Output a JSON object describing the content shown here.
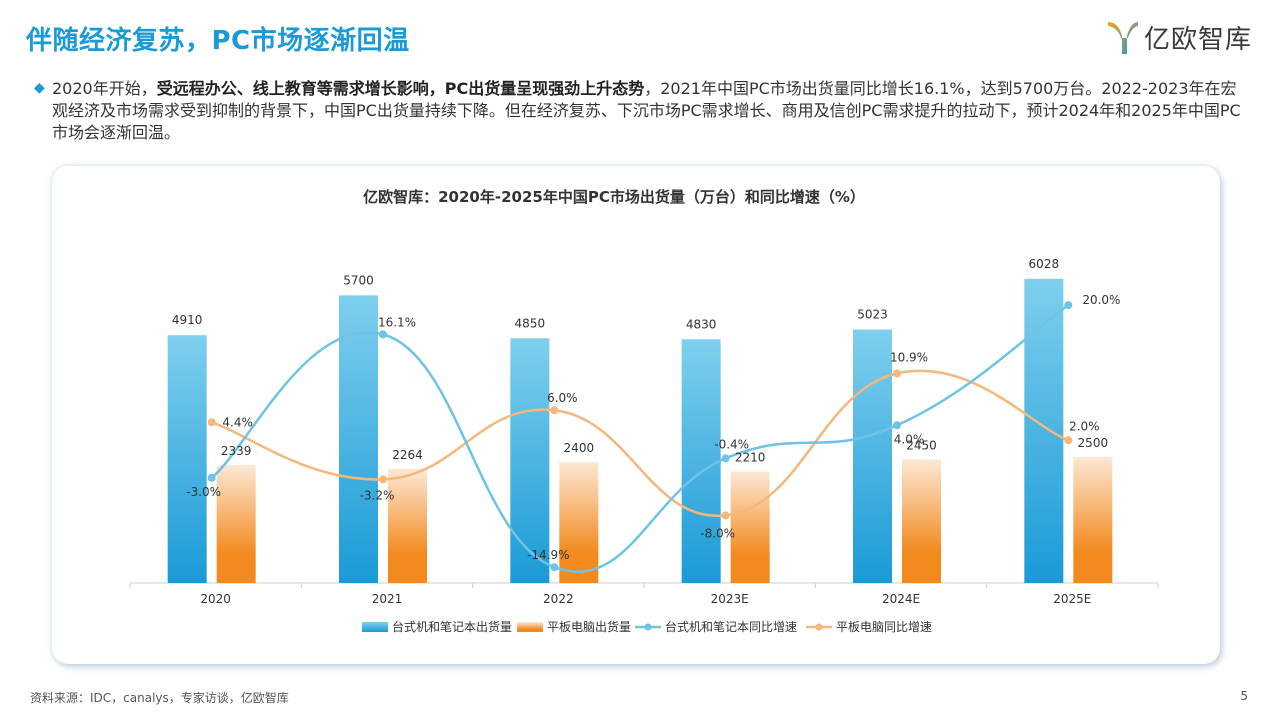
{
  "page": {
    "title": "伴随经济复苏，PC市场逐渐回温",
    "logo_text": "亿欧智库",
    "summary_parts": [
      "2020年开始，",
      "受远程办公、线上教育等需求增长影响，PC出货量呈现强劲上升态势",
      "，2021年中国PC市场出货量同比增长16.1%，达到5700万台。2022-2023年在宏观经济及市场需求受到抑制的背景下，中国PC出货量持续下降。但在经济复苏、下沉市场PC需求增长、商用及信创PC需求提升的拉动下，预计2024年和2025年中国PC市场会逐渐回温。"
    ],
    "source": "资料来源：IDC，canalys，专家访谈，亿欧智库",
    "page_number": "5"
  },
  "colors": {
    "accent": "#1a9ad6",
    "desktop_bar_top": "#7fcfee",
    "desktop_bar_bottom": "#1a9ad6",
    "tablet_bar_top": "#fde8d6",
    "tablet_bar_bottom": "#f28a1e",
    "desktop_line": "#6ec3e6",
    "tablet_line": "#f5b77a"
  },
  "chart_data": {
    "type": "bar",
    "title": "亿欧智库：2020年-2025年中国PC市场出货量（万台）和同比增速（%）",
    "categories": [
      "2020",
      "2021",
      "2022",
      "2023E",
      "2024E",
      "2025E"
    ],
    "series": [
      {
        "name": "台式机和笔记本出货量",
        "type": "bar",
        "axis": "left",
        "values": [
          4910,
          5700,
          4850,
          4830,
          5023,
          6028
        ],
        "labels": [
          "4910",
          "5700",
          "4850",
          "4830",
          "5023",
          "6028"
        ]
      },
      {
        "name": "平板电脑出货量",
        "type": "bar",
        "axis": "left",
        "values": [
          2339,
          2264,
          2400,
          2210,
          2450,
          2500
        ],
        "labels": [
          "2339",
          "2264",
          "2400",
          "2210",
          "2450",
          "2500"
        ]
      },
      {
        "name": "台式机和笔记本同比增速",
        "type": "line",
        "axis": "right",
        "values": [
          -3.0,
          16.1,
          -14.9,
          -0.4,
          4.0,
          20.0
        ],
        "labels": [
          "-3.0%",
          "16.1%",
          "-14.9%",
          "-0.4%",
          "4.0%",
          "20.0%"
        ]
      },
      {
        "name": "平板电脑同比增速",
        "type": "line",
        "axis": "right",
        "values": [
          4.4,
          -3.2,
          6.0,
          -8.0,
          10.9,
          2.0
        ],
        "labels": [
          "4.4%",
          "-3.2%",
          "6.0%",
          "-8.0%",
          "10.9%",
          "2.0%"
        ]
      }
    ],
    "ylim": [
      0,
      6500
    ],
    "y2lim": [
      -17,
      28
    ],
    "legend": "bottom",
    "grid": false
  }
}
